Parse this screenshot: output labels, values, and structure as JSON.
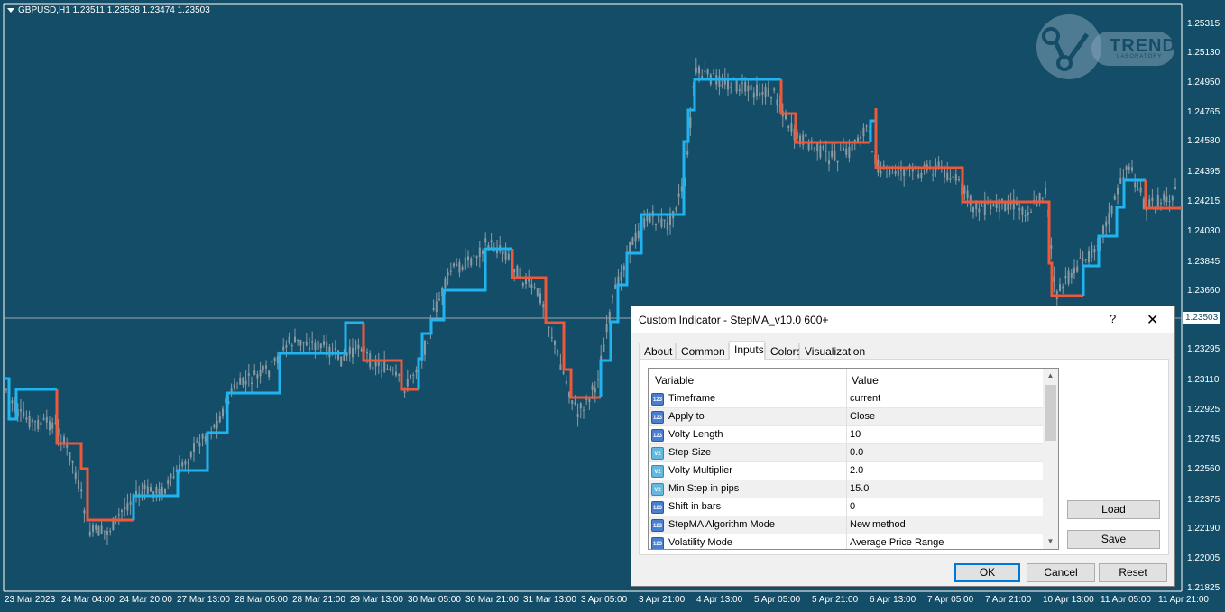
{
  "chart": {
    "symbol_info": "GBPUSD,H1  1.23511 1.23538 1.23474 1.23503",
    "current_price": "1.23503",
    "price_axis": [
      "1.25315",
      "1.25130",
      "1.24950",
      "1.24765",
      "1.24580",
      "1.24395",
      "1.24215",
      "1.24030",
      "1.23845",
      "1.23660",
      "1.23295",
      "1.23110",
      "1.22925",
      "1.22745",
      "1.22560",
      "1.22375",
      "1.22190",
      "1.22005",
      "1.21825"
    ],
    "time_axis": [
      "23 Mar 2023",
      "24 Mar 04:00",
      "24 Mar 20:00",
      "27 Mar 13:00",
      "28 Mar 05:00",
      "28 Mar 21:00",
      "29 Mar 13:00",
      "30 Mar 05:00",
      "30 Mar 21:00",
      "31 Mar 13:00",
      "3 Apr 05:00",
      "3 Apr 21:00",
      "4 Apr 13:00",
      "5 Apr 05:00",
      "5 Apr 21:00",
      "6 Apr 13:00",
      "7 Apr 05:00",
      "7 Apr 21:00",
      "10 Apr 13:00",
      "11 Apr 05:00",
      "11 Apr 21:00"
    ],
    "colors": {
      "background": "#144d67",
      "up_line": "#1fb4f0",
      "down_line": "#f0583a",
      "candle": "#8a9aa3"
    },
    "logo": {
      "text": "TREND",
      "subtext": "LABORATORY"
    }
  },
  "dialog": {
    "title": "Custom Indicator - StepMA_v10.0 600+",
    "help": "?",
    "close": "✕",
    "tabs": [
      {
        "label": "About",
        "active": false
      },
      {
        "label": "Common",
        "active": false
      },
      {
        "label": "Inputs",
        "active": true
      },
      {
        "label": "Colors",
        "active": false
      },
      {
        "label": "Visualization",
        "active": false
      }
    ],
    "grid": {
      "col_variable": "Variable",
      "col_value": "Value",
      "rows": [
        {
          "icon": "int-icon",
          "name": "Timeframe",
          "value": "current"
        },
        {
          "icon": "int-icon",
          "name": "Apply to",
          "value": "Close"
        },
        {
          "icon": "int-icon",
          "name": "Volty Length",
          "value": "10"
        },
        {
          "icon": "double-icon",
          "name": "Step Size",
          "value": "0.0"
        },
        {
          "icon": "double-icon",
          "name": "Volty Multiplier",
          "value": "2.0"
        },
        {
          "icon": "double-icon",
          "name": "Min Step in pips",
          "value": "15.0"
        },
        {
          "icon": "int-icon",
          "name": "Shift in bars",
          "value": "0"
        },
        {
          "icon": "int-icon",
          "name": "StepMA Algorithm Mode",
          "value": "New method"
        },
        {
          "icon": "int-icon",
          "name": "Volatility Mode",
          "value": "Average Price Range"
        }
      ]
    },
    "side_buttons": {
      "load": "Load",
      "save": "Save"
    },
    "buttons": {
      "ok": "OK",
      "cancel": "Cancel",
      "reset": "Reset"
    }
  }
}
